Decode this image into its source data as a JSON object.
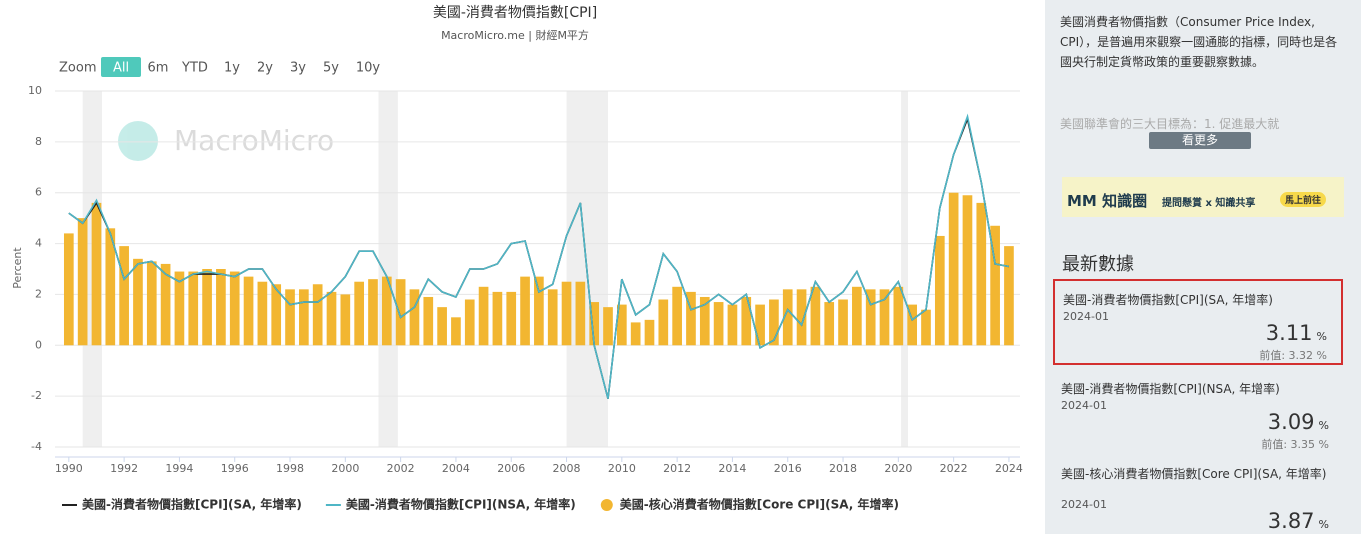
{
  "chart_data": {
    "type": "line",
    "title": "美國-消費者物價指數[CPI]",
    "subtitle": "MacroMicro.me | 財經M平方",
    "watermark": "MacroMicro",
    "zoom_label": "Zoom",
    "zoom_buttons": [
      "All",
      "6m",
      "YTD",
      "1y",
      "2y",
      "3y",
      "5y",
      "10y"
    ],
    "y_label": "Percent",
    "xlim": [
      1989.5,
      2024.4
    ],
    "xticks": [
      1990,
      1992,
      1994,
      1996,
      1998,
      2000,
      2002,
      2004,
      2006,
      2008,
      2010,
      2012,
      2014,
      2016,
      2018,
      2020,
      2022,
      2024
    ],
    "ylim": [
      -4,
      10
    ],
    "yticks": [
      -4,
      -2,
      0,
      2,
      4,
      6,
      8,
      10
    ],
    "grid": true,
    "shaded_ranges": [
      [
        1990.5,
        1991.2
      ],
      [
        2001.2,
        2001.9
      ],
      [
        2008.0,
        2009.5
      ],
      [
        2020.1,
        2020.35
      ]
    ],
    "x": [
      1990,
      1990.5,
      1991,
      1991.5,
      1992,
      1992.5,
      1993,
      1993.5,
      1994,
      1994.5,
      1995,
      1995.5,
      1996,
      1996.5,
      1997,
      1997.5,
      1998,
      1998.5,
      1999,
      1999.5,
      2000,
      2000.5,
      2001,
      2001.5,
      2002,
      2002.5,
      2003,
      2003.5,
      2004,
      2004.5,
      2005,
      2005.5,
      2006,
      2006.5,
      2007,
      2007.5,
      2008,
      2008.5,
      2009,
      2009.5,
      2010,
      2010.5,
      2011,
      2011.5,
      2012,
      2012.5,
      2013,
      2013.5,
      2014,
      2014.5,
      2015,
      2015.5,
      2016,
      2016.5,
      2017,
      2017.5,
      2018,
      2018.5,
      2019,
      2019.5,
      2020,
      2020.5,
      2021,
      2021.5,
      2022,
      2022.5,
      2023,
      2023.5,
      2024
    ],
    "series": [
      {
        "name": "美國-消費者物價指數[CPI](SA, 年增率)",
        "color": "#222222",
        "type": "line",
        "values": [
          5.2,
          4.8,
          5.6,
          4.4,
          2.6,
          3.2,
          3.3,
          2.8,
          2.5,
          2.8,
          2.8,
          2.8,
          2.7,
          3.0,
          3.0,
          2.2,
          1.6,
          1.7,
          1.7,
          2.1,
          2.7,
          3.7,
          3.7,
          2.7,
          1.1,
          1.5,
          2.6,
          2.1,
          1.9,
          3.0,
          3.0,
          3.2,
          4.0,
          4.1,
          2.1,
          2.4,
          4.3,
          5.6,
          0.0,
          -2.1,
          2.6,
          1.2,
          1.6,
          3.6,
          2.9,
          1.4,
          1.6,
          2.0,
          1.6,
          2.0,
          -0.1,
          0.2,
          1.4,
          0.8,
          2.5,
          1.7,
          2.1,
          2.9,
          1.6,
          1.8,
          2.5,
          1.0,
          1.4,
          5.4,
          7.5,
          8.9,
          6.4,
          3.2,
          3.1
        ]
      },
      {
        "name": "美國-消費者物價指數[CPI](NSA, 年增率)",
        "color": "#4fb6c6",
        "type": "line",
        "values": [
          5.2,
          4.8,
          5.7,
          4.4,
          2.6,
          3.2,
          3.3,
          2.8,
          2.5,
          2.8,
          2.9,
          2.8,
          2.7,
          3.0,
          3.0,
          2.2,
          1.6,
          1.7,
          1.7,
          2.1,
          2.7,
          3.7,
          3.7,
          2.7,
          1.1,
          1.5,
          2.6,
          2.1,
          1.9,
          3.0,
          3.0,
          3.2,
          4.0,
          4.1,
          2.1,
          2.4,
          4.3,
          5.6,
          0.0,
          -2.1,
          2.6,
          1.2,
          1.6,
          3.6,
          2.9,
          1.4,
          1.6,
          2.0,
          1.6,
          2.0,
          -0.1,
          0.2,
          1.4,
          0.8,
          2.5,
          1.7,
          2.1,
          2.9,
          1.6,
          1.8,
          2.5,
          1.0,
          1.4,
          5.4,
          7.5,
          9.0,
          6.4,
          3.2,
          3.1
        ]
      },
      {
        "name": "美國-核心消費者物價指數[Core CPI](SA, 年增率)",
        "color": "#f2b631",
        "type": "bar",
        "values": [
          4.4,
          5.0,
          5.6,
          4.6,
          3.9,
          3.4,
          3.3,
          3.2,
          2.9,
          2.9,
          3.0,
          3.0,
          2.9,
          2.7,
          2.5,
          2.4,
          2.2,
          2.2,
          2.4,
          2.1,
          2.0,
          2.5,
          2.6,
          2.7,
          2.6,
          2.2,
          1.9,
          1.5,
          1.1,
          1.8,
          2.3,
          2.1,
          2.1,
          2.7,
          2.7,
          2.2,
          2.5,
          2.5,
          1.7,
          1.5,
          1.6,
          0.9,
          1.0,
          1.8,
          2.3,
          2.1,
          1.9,
          1.7,
          1.6,
          1.9,
          1.6,
          1.8,
          2.2,
          2.2,
          2.3,
          1.7,
          1.8,
          2.3,
          2.2,
          2.2,
          2.3,
          1.6,
          1.4,
          4.3,
          6.0,
          5.9,
          5.6,
          4.7,
          3.9
        ]
      }
    ]
  },
  "sidebar": {
    "description": "美國消費者物價指數（Consumer Price Index, CPI），是普遍用來觀察一國通膨的指標，同時也是各國央行制定貨幣政策的重要觀察數據。",
    "description_more": "美國聯準會的三大目標為：1. 促進最大就",
    "more_button": "看更多",
    "banner": {
      "logo": "MM 知識圈",
      "tagline": "提問懸賞 x 知識共享",
      "button": "馬上前往"
    },
    "latest_title": "最新數據",
    "items": [
      {
        "name": "美國-消費者物價指數[CPI](SA, 年增率)",
        "date": "2024-01",
        "value": 3.11,
        "unit": "%",
        "previous": "前值: 3.32 %"
      },
      {
        "name": "美國-消費者物價指數[CPI](NSA, 年增率)",
        "date": "2024-01",
        "value": 3.09,
        "unit": "%",
        "previous": "前值: 3.35 %"
      },
      {
        "name": "美國-核心消費者物價指數[Core CPI](SA, 年增率)",
        "date": "2024-01",
        "value": 3.87,
        "unit": "%"
      }
    ]
  }
}
